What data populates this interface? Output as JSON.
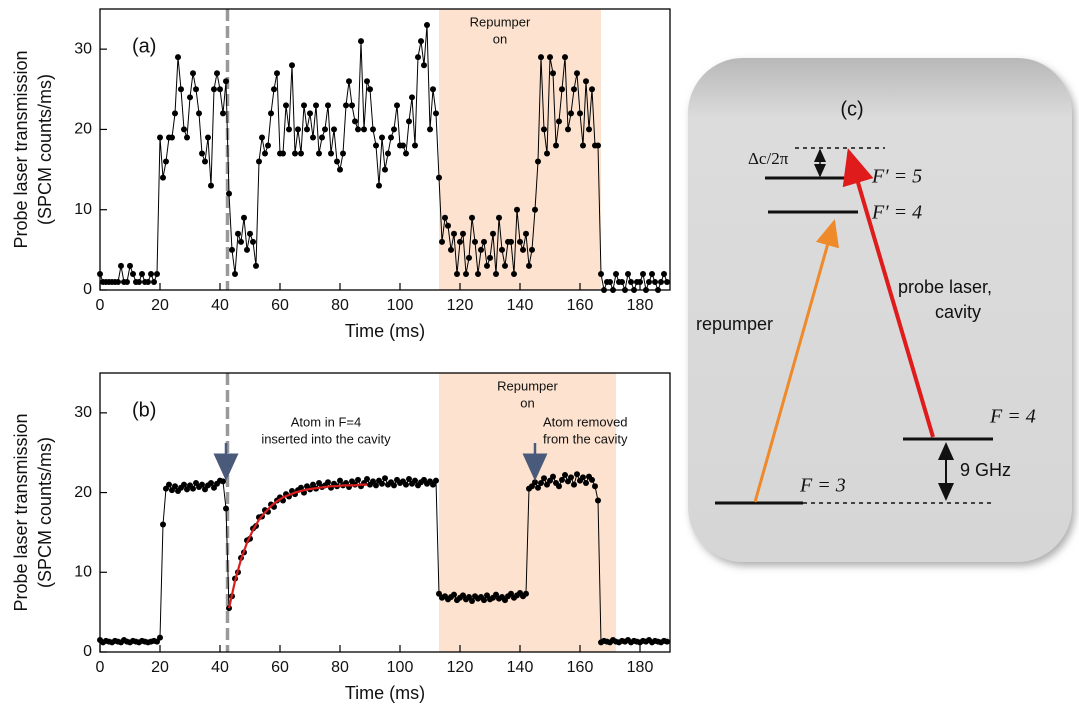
{
  "chart_data": [
    {
      "type": "line",
      "panel_label": "(a)",
      "xlabel": "Time (ms)",
      "ylabel": [
        "Probe laser transmission",
        "(SPCM counts/ms)"
      ],
      "x": [
        0,
        1,
        2,
        3,
        4,
        5,
        6,
        7,
        8,
        9,
        10,
        11,
        12,
        13,
        14,
        15,
        16,
        17,
        18,
        19,
        20,
        21,
        22,
        23,
        24,
        25,
        26,
        27,
        28,
        29,
        30,
        31,
        32,
        33,
        34,
        35,
        36,
        37,
        38,
        39,
        40,
        41,
        42,
        43,
        44,
        45,
        46,
        47,
        48,
        49,
        50,
        51,
        52,
        53,
        54,
        55,
        56,
        57,
        58,
        59,
        60,
        61,
        62,
        63,
        64,
        65,
        66,
        67,
        68,
        69,
        70,
        71,
        72,
        73,
        74,
        75,
        76,
        77,
        78,
        79,
        80,
        81,
        82,
        83,
        84,
        85,
        86,
        87,
        88,
        89,
        90,
        91,
        92,
        93,
        94,
        95,
        96,
        97,
        98,
        99,
        100,
        101,
        102,
        103,
        104,
        105,
        106,
        107,
        108,
        109,
        110,
        111,
        112,
        113,
        114,
        115,
        116,
        117,
        118,
        119,
        120,
        121,
        122,
        123,
        124,
        125,
        126,
        127,
        128,
        129,
        130,
        131,
        132,
        133,
        134,
        135,
        136,
        137,
        138,
        139,
        140,
        141,
        142,
        143,
        144,
        145,
        146,
        147,
        148,
        149,
        150,
        151,
        152,
        153,
        154,
        155,
        156,
        157,
        158,
        159,
        160,
        161,
        162,
        163,
        164,
        165,
        166,
        167,
        168,
        169,
        170,
        171,
        172,
        173,
        174,
        175,
        176,
        177,
        178,
        179,
        180,
        181,
        182,
        183,
        184,
        185,
        186,
        187,
        188,
        189
      ],
      "series": [
        {
          "color": "#000000",
          "markers": true,
          "values": [
            2,
            1,
            1,
            1,
            1,
            1,
            1,
            3,
            1,
            1,
            3,
            2,
            1,
            1,
            2,
            1,
            1,
            2,
            1,
            2,
            19,
            14,
            16,
            19,
            19,
            22,
            29,
            25,
            20,
            19,
            24,
            27,
            25,
            22,
            17,
            16,
            19,
            13,
            25,
            27,
            25,
            22,
            26,
            12,
            5,
            2,
            7,
            6,
            9,
            5,
            7,
            6,
            3,
            16,
            19,
            17,
            18,
            22,
            25,
            27,
            17,
            17,
            23,
            20,
            28,
            17,
            20,
            17,
            23,
            20,
            22,
            19,
            23,
            17,
            19,
            20,
            23,
            17,
            20,
            16,
            15,
            17,
            23,
            26,
            23,
            21,
            20,
            31,
            20,
            26,
            25,
            20,
            18,
            13,
            19,
            15,
            17,
            19,
            20,
            23,
            18,
            18,
            17,
            21,
            24,
            18,
            29,
            31,
            28,
            33,
            20,
            25,
            22,
            14,
            6,
            9,
            8,
            5,
            7,
            2,
            6,
            7,
            2,
            4,
            9,
            6,
            2,
            5,
            6,
            3,
            4,
            7,
            2,
            9,
            5,
            3,
            6,
            6,
            2,
            10,
            6,
            5,
            7,
            3,
            5,
            10,
            16,
            29,
            20,
            17,
            29,
            27,
            18,
            21,
            25,
            29,
            20,
            22,
            25,
            27,
            22,
            18,
            26,
            20,
            25,
            18,
            18,
            2,
            0,
            1,
            1,
            0,
            2,
            1,
            1,
            0,
            2,
            1,
            0,
            1,
            1,
            2,
            0,
            1,
            2,
            1,
            0,
            1,
            2,
            1
          ]
        }
      ],
      "xlim": [
        0,
        190
      ],
      "ylim": [
        0,
        35
      ],
      "xticks": [
        0,
        20,
        40,
        60,
        80,
        100,
        120,
        140,
        160,
        180
      ],
      "yticks": [
        0,
        10,
        20,
        30
      ],
      "shaded": [
        113,
        167
      ],
      "shaded_label": [
        "Repumper",
        "on"
      ],
      "vline": 42.5
    },
    {
      "type": "line",
      "panel_label": "(b)",
      "xlabel": "Time (ms)",
      "ylabel": [
        "Probe laser transmission",
        "(SPCM counts/ms)"
      ],
      "x": [
        0,
        1,
        2,
        3,
        4,
        5,
        6,
        7,
        8,
        9,
        10,
        11,
        12,
        13,
        14,
        15,
        16,
        17,
        18,
        19,
        20,
        21,
        22,
        23,
        24,
        25,
        26,
        27,
        28,
        29,
        30,
        31,
        32,
        33,
        34,
        35,
        36,
        37,
        38,
        39,
        40,
        41,
        42,
        43,
        44,
        45,
        46,
        47,
        48,
        49,
        50,
        51,
        52,
        53,
        54,
        55,
        56,
        57,
        58,
        59,
        60,
        61,
        62,
        63,
        64,
        65,
        66,
        67,
        68,
        69,
        70,
        71,
        72,
        73,
        74,
        75,
        76,
        77,
        78,
        79,
        80,
        81,
        82,
        83,
        84,
        85,
        86,
        87,
        88,
        89,
        90,
        91,
        92,
        93,
        94,
        95,
        96,
        97,
        98,
        99,
        100,
        101,
        102,
        103,
        104,
        105,
        106,
        107,
        108,
        109,
        110,
        111,
        112,
        113,
        114,
        115,
        116,
        117,
        118,
        119,
        120,
        121,
        122,
        123,
        124,
        125,
        126,
        127,
        128,
        129,
        130,
        131,
        132,
        133,
        134,
        135,
        136,
        137,
        138,
        139,
        140,
        141,
        142,
        143,
        144,
        145,
        146,
        147,
        148,
        149,
        150,
        151,
        152,
        153,
        154,
        155,
        156,
        157,
        158,
        159,
        160,
        161,
        162,
        163,
        164,
        165,
        166,
        167,
        168,
        169,
        170,
        171,
        172,
        173,
        174,
        175,
        176,
        177,
        178,
        179,
        180,
        181,
        182,
        183,
        184,
        185,
        186,
        187,
        188,
        189
      ],
      "series": [
        {
          "color": "#000000",
          "markers": true,
          "values": [
            1.5,
            1.2,
            1.4,
            1.3,
            1.2,
            1.4,
            1.3,
            1.2,
            1.5,
            1.3,
            1.2,
            1.4,
            1.3,
            1.2,
            1.4,
            1.3,
            1.2,
            1.3,
            1.4,
            1.3,
            1.8,
            16,
            20.5,
            21,
            20.3,
            20.8,
            20.2,
            20.6,
            21,
            20.4,
            20.9,
            20.5,
            21.2,
            20.7,
            21,
            20.4,
            20.9,
            21.2,
            20.6,
            21.1,
            21.5,
            21.4,
            18,
            5.5,
            7,
            9.2,
            10,
            11.8,
            12.5,
            14,
            14.2,
            15.5,
            15.8,
            16.9,
            17,
            17.8,
            17.6,
            18.5,
            18.2,
            19,
            19.4,
            19,
            19.8,
            19.5,
            20.2,
            19.8,
            20.3,
            20.6,
            20,
            20.8,
            20.4,
            21,
            20.5,
            21.2,
            20.7,
            20.9,
            21.3,
            20.6,
            21.1,
            20.8,
            21.5,
            20.9,
            21.2,
            20.7,
            21.4,
            21,
            21.6,
            20.8,
            21.2,
            21.7,
            21,
            21.4,
            20.9,
            21.5,
            21.1,
            21.8,
            21,
            21.3,
            20.9,
            21.6,
            21.2,
            21.4,
            21,
            21.7,
            21.1,
            21.5,
            20.9,
            21.3,
            21.6,
            21.1,
            21.4,
            21,
            21.5,
            7.3,
            6.8,
            7,
            6.6,
            6.9,
            7.2,
            6.5,
            6.8,
            7.1,
            6.6,
            6.9,
            6.4,
            7,
            6.7,
            6.9,
            6.5,
            7.1,
            6.6,
            6.8,
            7.2,
            6.7,
            6.9,
            6.5,
            7,
            7.3,
            6.8,
            7.1,
            7.4,
            7,
            7.3,
            20.5,
            20.8,
            21.3,
            20.6,
            21.2,
            21.8,
            21,
            21.5,
            22,
            21.2,
            20.8,
            21.6,
            22.2,
            21.4,
            21.9,
            21,
            22.3,
            21.5,
            21.9,
            21.2,
            22,
            21.6,
            20.8,
            19,
            1.2,
            1.4,
            1.3,
            1.2,
            1.5,
            1.3,
            1.2,
            1.4,
            1.3,
            1.5,
            1.2,
            1.4,
            1.3,
            1.2,
            1.4,
            1.3,
            1.5,
            1.2,
            1.4,
            1.3,
            1.2,
            1.4,
            1.3
          ]
        },
        {
          "color": "#d81e1e",
          "markers": false,
          "x": [
            43,
            45,
            47,
            49,
            51,
            53,
            55,
            57,
            59,
            61,
            63,
            65,
            67,
            69,
            71,
            73,
            75,
            77,
            79,
            81,
            83,
            85,
            87,
            89
          ],
          "values": [
            5.5,
            8.9,
            11.6,
            13.7,
            15.3,
            16.6,
            17.5,
            18.3,
            18.9,
            19.4,
            19.7,
            20.0,
            20.2,
            20.4,
            20.5,
            20.6,
            20.7,
            20.8,
            20.8,
            20.9,
            20.9,
            20.9,
            21,
            21
          ]
        }
      ],
      "xlim": [
        0,
        190
      ],
      "ylim": [
        0,
        35
      ],
      "xticks": [
        0,
        20,
        40,
        60,
        80,
        100,
        120,
        140,
        160,
        180
      ],
      "yticks": [
        0,
        10,
        20,
        30
      ],
      "shaded": [
        113,
        172
      ],
      "shaded_label": [
        "Repumper",
        "on"
      ],
      "vline": 42.5,
      "events": [
        {
          "x": 42,
          "text": [
            "Atom in F=4",
            "inserted into the cavity"
          ]
        },
        {
          "x": 145,
          "text": [
            "Atom removed",
            "from the cavity"
          ]
        }
      ]
    }
  ],
  "diagram": {
    "panel_label": "(c)",
    "detuning": "Δc/2π",
    "levels": [
      "F′ = 5",
      "F′ = 4",
      "F = 4",
      "F = 3"
    ],
    "repumper": "repumper",
    "probe": [
      "probe laser,",
      "cavity"
    ],
    "splitting": "9 GHz"
  }
}
